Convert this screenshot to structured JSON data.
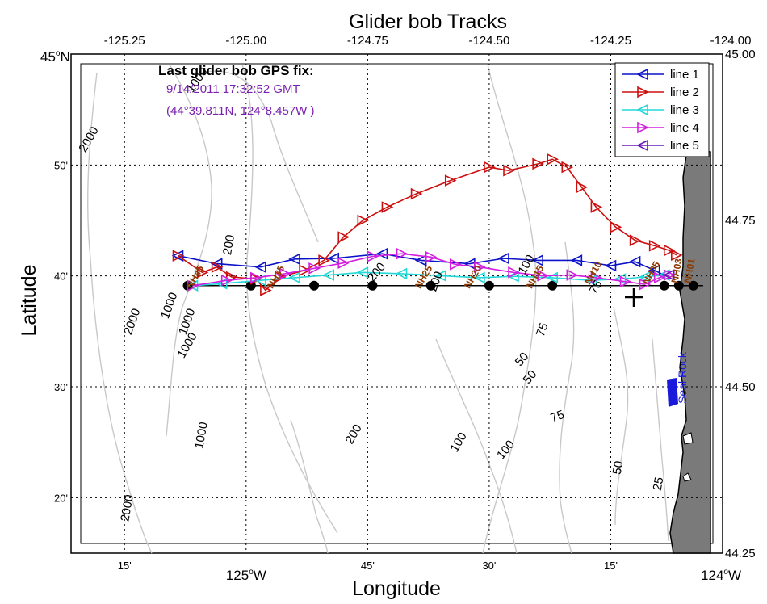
{
  "title": "Glider bob Tracks",
  "xlabel": "Longitude",
  "ylabel": "Latitude",
  "top_ticks": [
    "-125.25",
    "-125.00",
    "-124.75",
    "-124.50",
    "-124.25",
    "-124.00"
  ],
  "right_ticks": [
    "45.00",
    "44.75",
    "44.50",
    "44.25"
  ],
  "bottom_minor_ticks": [
    "15'",
    "45'",
    "30'",
    "15'"
  ],
  "bottom_major": {
    "deg": "125",
    "hem": "W",
    "deg2": "124",
    "hem2": "W"
  },
  "left_ticks": [
    "50'",
    "40'",
    "30'",
    "20'"
  ],
  "left_major": {
    "deg": "45",
    "hem": "N"
  },
  "info": {
    "heading": "Last glider bob GPS fix:",
    "time": "9/14/2011 17:32:52 GMT",
    "pos": "(44°39.811N, 124°8.457W )"
  },
  "contours": [
    {
      "text": "2000"
    },
    {
      "text": "1000"
    },
    {
      "text": "200"
    },
    {
      "text": "1000"
    },
    {
      "text": "2000"
    },
    {
      "text": "1000"
    },
    {
      "text": "1000"
    },
    {
      "text": "200"
    },
    {
      "text": "200"
    },
    {
      "text": "100"
    },
    {
      "text": "75"
    },
    {
      "text": "75"
    },
    {
      "text": "50"
    },
    {
      "text": "50"
    },
    {
      "text": "75"
    },
    {
      "text": "1000"
    },
    {
      "text": "200"
    },
    {
      "text": "100"
    },
    {
      "text": "100"
    },
    {
      "text": "2000"
    },
    {
      "text": "50"
    },
    {
      "text": "25"
    }
  ],
  "stations": [
    {
      "text": "NH45"
    },
    {
      "text": "NH35"
    },
    {
      "text": "NH25"
    },
    {
      "text": "NH20"
    },
    {
      "text": "NH15"
    },
    {
      "text": "NH10"
    },
    {
      "text": "NH05"
    },
    {
      "text": "NH03"
    },
    {
      "text": "NH01"
    }
  ],
  "place": {
    "text": "Seal Rock",
    "color": "#1a1adc"
  },
  "colors": {
    "land": "#7a7a7a",
    "contour": "#c8c8c8",
    "station": "#8b3a00"
  },
  "legend": {
    "placement": "top-right"
  },
  "chart_data": {
    "type": "map",
    "title": "Glider bob Tracks",
    "xlabel": "Longitude",
    "ylabel": "Latitude",
    "xlim": [
      -125.36,
      -124.02
    ],
    "ylim": [
      44.25,
      45.0
    ],
    "grid": true,
    "series": [
      {
        "name": "line 1",
        "color": "#0b12c8",
        "marker": "triangle-left",
        "points": [
          [
            -125.14,
            44.697
          ],
          [
            -125.06,
            44.685
          ],
          [
            -124.97,
            44.68
          ],
          [
            -124.9,
            44.692
          ],
          [
            -124.82,
            44.693
          ],
          [
            -124.72,
            44.7
          ],
          [
            -124.64,
            44.69
          ],
          [
            -124.54,
            44.685
          ],
          [
            -124.47,
            44.693
          ],
          [
            -124.4,
            44.69
          ],
          [
            -124.32,
            44.69
          ],
          [
            -124.25,
            44.682
          ],
          [
            -124.2,
            44.688
          ],
          [
            -124.16,
            44.675
          ],
          [
            -124.14,
            44.668
          ]
        ]
      },
      {
        "name": "line 2",
        "color": "#cc1010",
        "marker": "triangle-right",
        "points": [
          [
            -125.14,
            44.697
          ],
          [
            -125.09,
            44.672
          ],
          [
            -125.06,
            44.68
          ],
          [
            -125.03,
            44.665
          ],
          [
            -124.98,
            44.662
          ],
          [
            -124.96,
            44.645
          ],
          [
            -124.93,
            44.665
          ],
          [
            -124.88,
            44.675
          ],
          [
            -124.84,
            44.69
          ],
          [
            -124.8,
            44.725
          ],
          [
            -124.76,
            44.75
          ],
          [
            -124.71,
            44.77
          ],
          [
            -124.65,
            44.79
          ],
          [
            -124.58,
            44.81
          ],
          [
            -124.5,
            44.83
          ],
          [
            -124.46,
            44.825
          ],
          [
            -124.4,
            44.835
          ],
          [
            -124.37,
            44.842
          ],
          [
            -124.34,
            44.83
          ],
          [
            -124.31,
            44.8
          ],
          [
            -124.28,
            44.77
          ],
          [
            -124.24,
            44.74
          ],
          [
            -124.2,
            44.72
          ],
          [
            -124.16,
            44.712
          ],
          [
            -124.13,
            44.705
          ],
          [
            -124.115,
            44.698
          ]
        ]
      },
      {
        "name": "line 3",
        "color": "#22d8d8",
        "marker": "triangle-left",
        "points": [
          [
            -125.11,
            44.652
          ],
          [
            -125.05,
            44.655
          ],
          [
            -124.97,
            44.66
          ],
          [
            -124.9,
            44.664
          ],
          [
            -124.83,
            44.668
          ],
          [
            -124.76,
            44.672
          ],
          [
            -124.68,
            44.67
          ],
          [
            -124.6,
            44.667
          ],
          [
            -124.52,
            44.664
          ],
          [
            -124.45,
            44.666
          ],
          [
            -124.37,
            44.664
          ],
          [
            -124.29,
            44.66
          ],
          [
            -124.23,
            44.662
          ],
          [
            -124.18,
            44.665
          ],
          [
            -124.14,
            44.668
          ]
        ]
      },
      {
        "name": "line 4",
        "color": "#d21ee0",
        "marker": "triangle-right",
        "points": [
          [
            -125.11,
            44.652
          ],
          [
            -125.04,
            44.66
          ],
          [
            -124.98,
            44.664
          ],
          [
            -124.92,
            44.67
          ],
          [
            -124.86,
            44.678
          ],
          [
            -124.8,
            44.686
          ],
          [
            -124.74,
            44.696
          ],
          [
            -124.68,
            44.7
          ],
          [
            -124.62,
            44.695
          ],
          [
            -124.57,
            44.684
          ],
          [
            -124.52,
            44.68
          ],
          [
            -124.45,
            44.672
          ],
          [
            -124.39,
            44.667
          ],
          [
            -124.33,
            44.668
          ],
          [
            -124.28,
            44.664
          ],
          [
            -124.22,
            44.658
          ],
          [
            -124.18,
            44.654
          ],
          [
            -124.15,
            44.664
          ],
          [
            -124.13,
            44.668
          ]
        ]
      },
      {
        "name": "line 5",
        "color": "#6a1ab8",
        "marker": "triangle-left",
        "points": [
          [
            -124.13,
            44.668
          ]
        ]
      }
    ],
    "station_line": {
      "lat": 44.652,
      "lons": [
        -125.12,
        -124.99,
        -124.86,
        -124.74,
        -124.62,
        -124.5,
        -124.37,
        -124.14,
        -124.11,
        -124.08
      ]
    },
    "last_fix": {
      "lon": -124.141,
      "lat": 44.664
    }
  }
}
